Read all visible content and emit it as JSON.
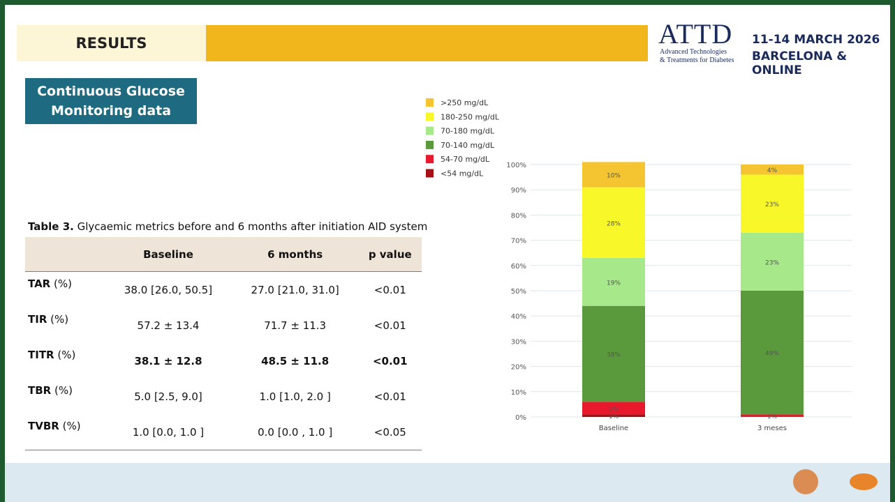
{
  "header": {
    "title": "RESULTS",
    "logo": "ATTD",
    "logo_subtitle_1": "Advanced Technologies",
    "logo_subtitle_2": "& Treatments for Diabetes",
    "dates": "11-14 MARCH 2026",
    "place": "BARCELONA & ONLINE"
  },
  "section": {
    "line_1": "Continuous Glucose",
    "line_2": "Monitoring data"
  },
  "table": {
    "caption_bold": "Table 3.",
    "caption": "Glycaemic metrics before and 6 months after initiation AID system",
    "columns": [
      "Baseline",
      "6 months",
      "p value"
    ],
    "rows": [
      {
        "metric": "TAR",
        "unit": "(%)",
        "cells": [
          "38.0 [26.0, 50.5]",
          "27.0 [21.0, 31.0]",
          "<0.01"
        ]
      },
      {
        "metric": "TIR",
        "unit": "(%)",
        "cells": [
          "57.2 ± 13.4",
          "71.7 ± 11.3",
          "<0.01"
        ]
      },
      {
        "metric": "TITR",
        "unit": "(%)",
        "cells": [
          "38.1 ± 12.8",
          "48.5 ± 11.8",
          "<0.01"
        ]
      },
      {
        "metric": "TBR",
        "unit": "(%)",
        "cells": [
          "5.0  [2.5, 9.0]",
          "1.0  [1.0, 2.0 ]",
          "<0.01"
        ]
      },
      {
        "metric": "TVBR",
        "unit": "(%)",
        "cells": [
          "1.0  [0.0, 1.0 ]",
          "0.0  [0.0 , 1.0 ]",
          "<0.05"
        ]
      }
    ]
  },
  "chart_data": {
    "type": "stacked_bar",
    "categories": [
      "Baseline",
      "3 meses"
    ],
    "series": [
      {
        "name": ">250 mg/dL",
        "color": "#f4c531",
        "values": [
          10,
          4
        ],
        "value_labels": [
          "10%",
          "4%"
        ]
      },
      {
        "name": "180-250 mg/dL",
        "color": "#f7f72a",
        "values": [
          28,
          23
        ],
        "value_labels": [
          "28%",
          "23%"
        ]
      },
      {
        "name": "70-180 mg/dL",
        "color": "#a6e88a",
        "values": [
          19,
          23
        ],
        "value_labels": [
          "19%",
          "23%"
        ]
      },
      {
        "name": "70-140 mg/dL",
        "color": "#5a9a3c",
        "values": [
          38,
          49
        ],
        "value_labels": [
          "38%",
          "49%"
        ]
      },
      {
        "name": "54-70 mg/dL",
        "color": "#e8192c",
        "values": [
          5,
          1
        ],
        "value_labels": [
          "5%",
          "1%"
        ]
      },
      {
        "name": "<54 mg/dL",
        "color": "#a50f15",
        "values": [
          1,
          0
        ],
        "value_labels": [
          "1%",
          null
        ]
      }
    ],
    "ylim": [
      0,
      100
    ],
    "yticks": [
      {
        "value": 0,
        "label": "0%"
      },
      {
        "value": 10,
        "label": "10%"
      },
      {
        "value": 20,
        "label": "20%"
      },
      {
        "value": 30,
        "label": "30%"
      },
      {
        "value": 40,
        "label": "40%"
      },
      {
        "value": 50,
        "label": "50%"
      },
      {
        "value": 60,
        "label": "60%"
      },
      {
        "value": 70,
        "label": "70%"
      },
      {
        "value": 80,
        "label": "80%"
      },
      {
        "value": 90,
        "label": "90%"
      },
      {
        "value": 100,
        "label": "100%"
      }
    ],
    "grid": true,
    "legend": "top-left"
  }
}
